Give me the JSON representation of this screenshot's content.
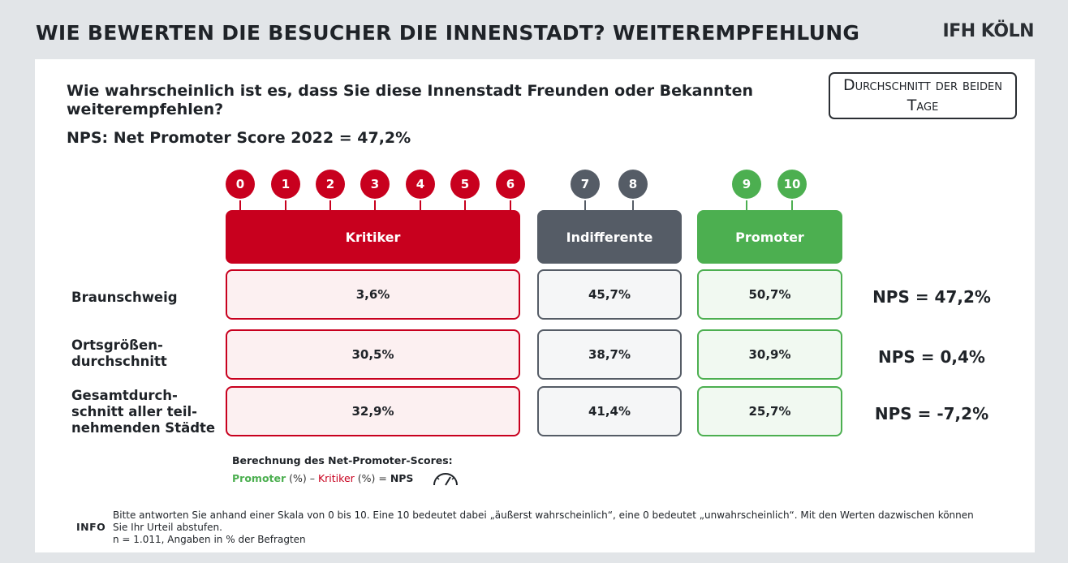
{
  "header": {
    "title": "WIE BEWERTEN DIE BESUCHER DIE INNENSTADT? WEITEREMPFEHLUNG",
    "logo": "IFH KÖLN"
  },
  "question": "Wie wahrscheinlich ist es, dass Sie diese Innenstadt Freunden oder Bekannten weiterempfehlen?",
  "nps_headline": "NPS: Net Promoter Score 2022 = 47,2%",
  "average_box": "Durchschnitt der beiden Tage",
  "scale": {
    "critics": [
      "0",
      "1",
      "2",
      "3",
      "4",
      "5",
      "6"
    ],
    "indifferent": [
      "7",
      "8"
    ],
    "promoters": [
      "9",
      "10"
    ]
  },
  "colors": {
    "critics": "#c8001e",
    "indifferent": "#555c66",
    "promoters": "#4caf50",
    "critics_bg": "#fcf0f1",
    "indifferent_bg": "#f5f6f7",
    "promoters_bg": "#f1f9f1"
  },
  "chart_data": {
    "type": "table",
    "columns": [
      "Kritiker",
      "Indifferente",
      "Promoter"
    ],
    "rows": [
      {
        "label": "Braunschweig",
        "values": [
          "3,6%",
          "45,7%",
          "50,7%"
        ],
        "nps": "NPS = 47,2%"
      },
      {
        "label": "Ortsgrößen-\ndurchschnitt",
        "values": [
          "30,5%",
          "38,7%",
          "30,9%"
        ],
        "nps": "NPS = 0,4%"
      },
      {
        "label": "Gesamtdurch-\nschnitt aller teil-\nnehmenden Städte",
        "values": [
          "32,9%",
          "41,4%",
          "25,7%"
        ],
        "nps": "NPS = -7,2%"
      }
    ]
  },
  "calculation": {
    "title": "Berechnung des Net-Promoter-Scores:",
    "promoter": "Promoter",
    "pct1": " (%) – ",
    "critic": "Kritiker",
    "pct2": " (%) = ",
    "nps": "NPS"
  },
  "info": {
    "label": "INFO",
    "line1": "Bitte antworten Sie anhand einer Skala von 0 bis 10. Eine 10 bedeutet dabei „äußerst wahrscheinlich“, eine 0 bedeutet „unwahrscheinlich“. Mit den Werten dazwischen können Sie Ihr Urteil abstufen.",
    "line2": "n = 1.011, Angaben in % der Befragten"
  }
}
